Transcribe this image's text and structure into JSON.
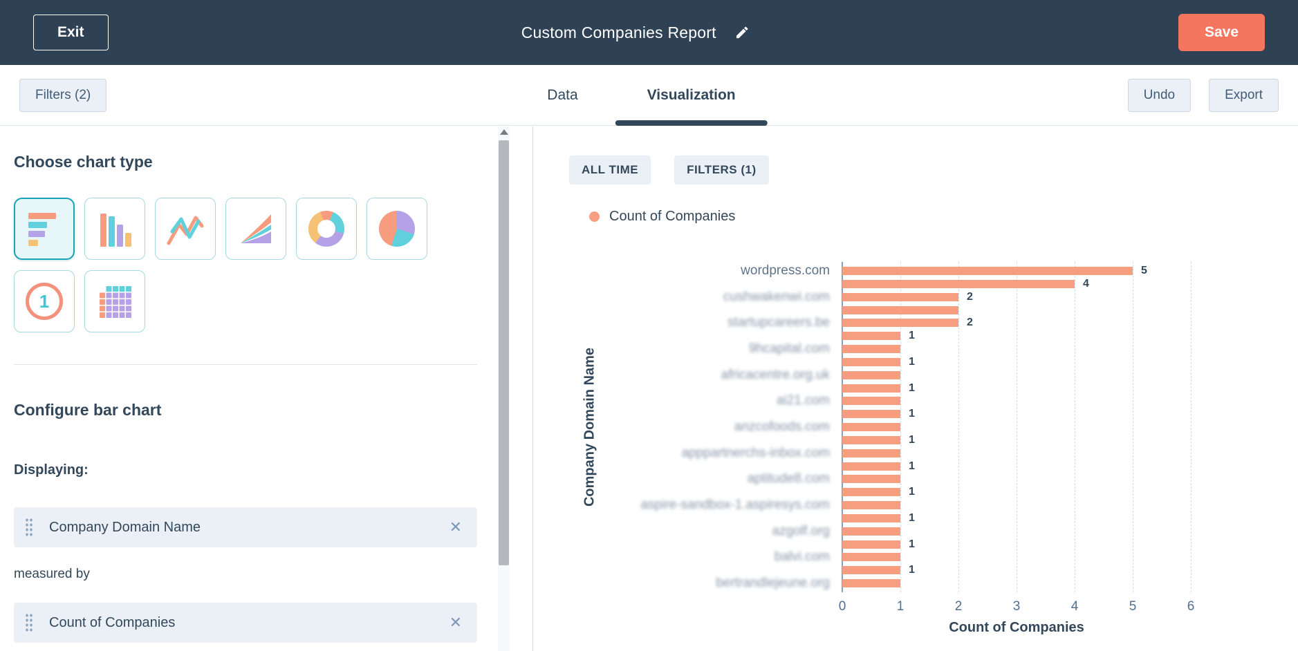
{
  "navbar": {
    "exit_label": "Exit",
    "title": "Custom Companies Report",
    "save_label": "Save"
  },
  "toolbar": {
    "filters_label": "Filters (2)",
    "tabs": [
      {
        "label": "Data",
        "active": false
      },
      {
        "label": "Visualization",
        "active": true
      }
    ],
    "undo_label": "Undo",
    "export_label": "Export"
  },
  "sidebar": {
    "chart_type_heading": "Choose chart type",
    "chart_types": [
      "horizontal-bar",
      "column",
      "line",
      "area",
      "donut",
      "pie",
      "single-value",
      "table"
    ],
    "selected_chart_type": "horizontal-bar",
    "configure_heading": "Configure bar chart",
    "displaying_label": "Displaying:",
    "dimension_chip": "Company Domain Name",
    "measured_by_label": "measured by",
    "measure_chip": "Count of Companies"
  },
  "chart_header": {
    "badges": [
      "ALL TIME",
      "FILTERS (1)"
    ],
    "legend": [
      {
        "label": "Count of Companies",
        "color": "#f79d80"
      }
    ]
  },
  "chart_data": {
    "type": "bar",
    "orientation": "horizontal",
    "title": "",
    "xlabel": "Count of Companies",
    "ylabel": "Company Domain Name",
    "xlim": [
      0,
      6
    ],
    "x_ticks": [
      0,
      1,
      2,
      3,
      4,
      5,
      6
    ],
    "grid": "dashed-vertical",
    "legend_position": "top-left",
    "series_name": "Count of Companies",
    "bar_color": "#f79d80",
    "bars": [
      {
        "category": "wordpress.com",
        "blurred": false,
        "value": 5,
        "value_label": "5"
      },
      {
        "category": "",
        "value": 4,
        "value_label": "4"
      },
      {
        "category": "cushwakenwi.com",
        "blurred": true,
        "value": 2,
        "value_label": "2"
      },
      {
        "category": "",
        "value": 2,
        "value_label": ""
      },
      {
        "category": "startupcareers.be",
        "blurred": true,
        "value": 2,
        "value_label": "2"
      },
      {
        "category": "",
        "value": 1,
        "value_label": "1"
      },
      {
        "category": "9hcapital.com",
        "blurred": true,
        "value": 1,
        "value_label": ""
      },
      {
        "category": "",
        "value": 1,
        "value_label": "1"
      },
      {
        "category": "africacentre.org.uk",
        "blurred": true,
        "value": 1,
        "value_label": ""
      },
      {
        "category": "",
        "value": 1,
        "value_label": "1"
      },
      {
        "category": "ai21.com",
        "blurred": true,
        "value": 1,
        "value_label": ""
      },
      {
        "category": "",
        "value": 1,
        "value_label": "1"
      },
      {
        "category": "anzcofoods.com",
        "blurred": true,
        "value": 1,
        "value_label": ""
      },
      {
        "category": "",
        "value": 1,
        "value_label": "1"
      },
      {
        "category": "apppartnerchs-inbox.com",
        "blurred": true,
        "value": 1,
        "value_label": ""
      },
      {
        "category": "",
        "value": 1,
        "value_label": "1"
      },
      {
        "category": "aptitude8.com",
        "blurred": true,
        "value": 1,
        "value_label": ""
      },
      {
        "category": "",
        "value": 1,
        "value_label": "1"
      },
      {
        "category": "aspire-sandbox-1.aspiresys.com",
        "blurred": true,
        "value": 1,
        "value_label": ""
      },
      {
        "category": "",
        "value": 1,
        "value_label": "1"
      },
      {
        "category": "azgolf.org",
        "blurred": true,
        "value": 1,
        "value_label": ""
      },
      {
        "category": "",
        "value": 1,
        "value_label": "1"
      },
      {
        "category": "balvi.com",
        "blurred": true,
        "value": 1,
        "value_label": ""
      },
      {
        "category": "",
        "value": 1,
        "value_label": "1"
      },
      {
        "category": "bertrandlejeune.org",
        "blurred": true,
        "value": 1,
        "value_label": ""
      }
    ]
  },
  "colors": {
    "navbar_bg": "#2f4154",
    "accent_orange": "#f4765e",
    "bar_salmon": "#f79d80",
    "selected_teal": "#17a2b8",
    "navy_text": "#33475b",
    "chip_bg": "#eaf0f6"
  }
}
